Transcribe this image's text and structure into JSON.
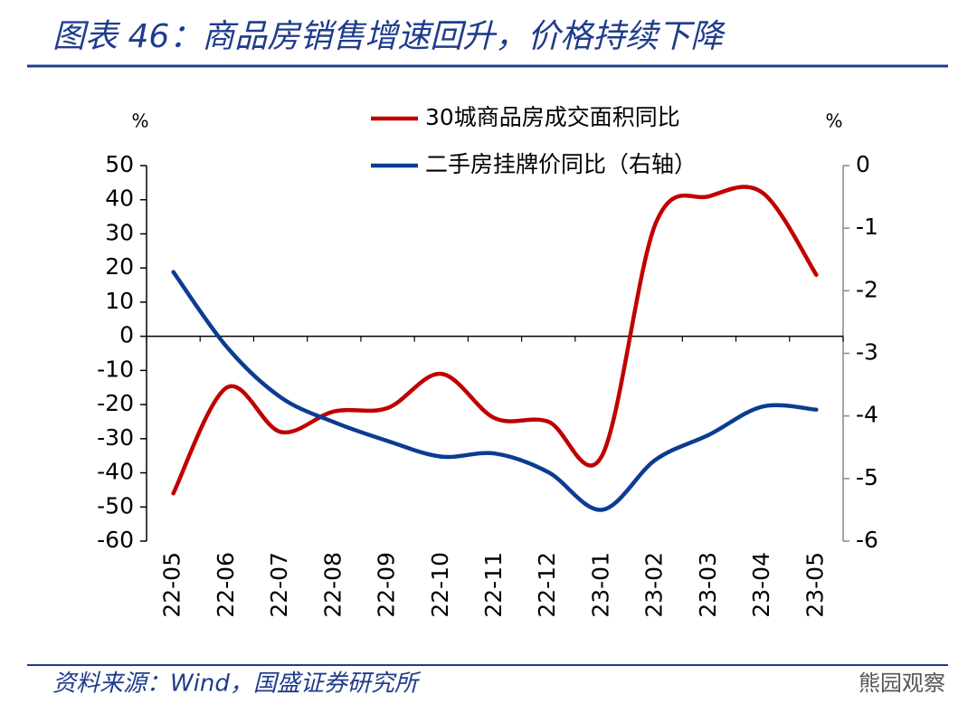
{
  "header": {
    "title": "图表 46：商品房销售增速回升，价格持续下降"
  },
  "chart_data": {
    "type": "line",
    "y_unit": "%",
    "y2_unit": "%",
    "categories": [
      "22-05",
      "22-06",
      "22-07",
      "22-08",
      "22-09",
      "22-10",
      "22-11",
      "22-12",
      "23-01",
      "23-02",
      "23-03",
      "23-04",
      "23-05"
    ],
    "series": [
      {
        "name": "30城商品房成交面积同比",
        "color": "#c00000",
        "values": [
          -46,
          -15,
          -28,
          -22,
          -21,
          -11,
          -24,
          -25,
          -35,
          33,
          41,
          42,
          18
        ]
      },
      {
        "name": "二手房挂牌价同比（右轴）",
        "color": "#0b3c91",
        "axis": "y2",
        "values": [
          -1.7,
          -2.9,
          -3.7,
          -4.1,
          -4.4,
          -4.65,
          -4.6,
          -4.9,
          -5.5,
          -4.7,
          -4.3,
          -3.85,
          -3.9
        ]
      }
    ],
    "ylim": [
      -60,
      50
    ],
    "yticks": [
      50,
      40,
      30,
      20,
      10,
      0,
      -10,
      -20,
      -30,
      -40,
      -50,
      -60
    ],
    "y2lim": [
      -6,
      0
    ],
    "y2ticks": [
      0,
      -1,
      -2,
      -3,
      -4,
      -5,
      -6
    ]
  },
  "footer": {
    "source": "资料来源：Wind，国盛证券研究所",
    "watermark": "熊园观察"
  }
}
